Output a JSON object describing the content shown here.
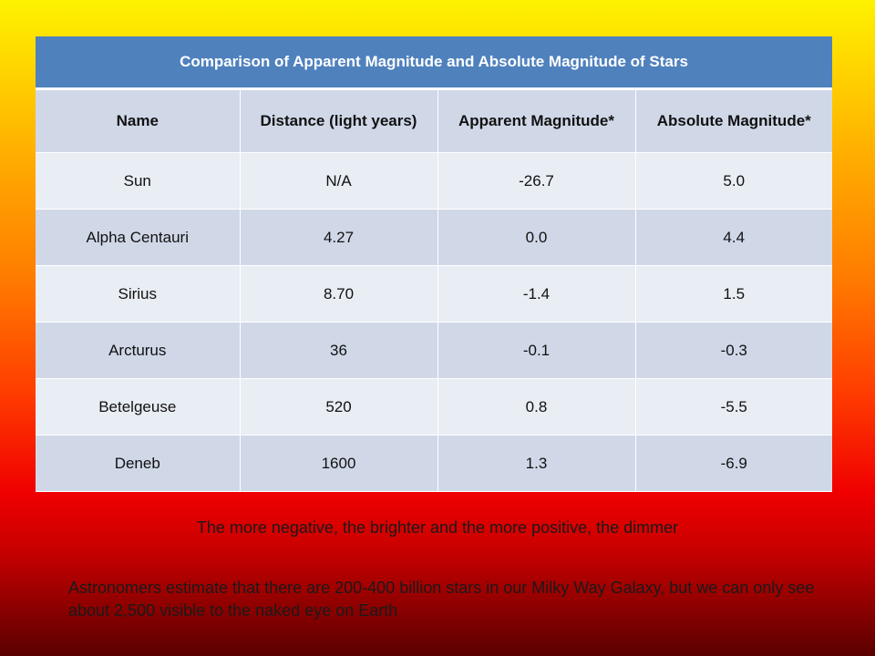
{
  "table": {
    "title": "Comparison of Apparent Magnitude and Absolute Magnitude of Stars",
    "headers": [
      "Name",
      "Distance (light years)",
      "Apparent Magnitude*",
      "Absolute Magnitude*"
    ],
    "rows": [
      [
        "Sun",
        "N/A",
        "-26.7",
        "5.0"
      ],
      [
        "Alpha Centauri",
        "4.27",
        "0.0",
        "4.4"
      ],
      [
        "Sirius",
        "8.70",
        "-1.4",
        "1.5"
      ],
      [
        "Arcturus",
        "36",
        "-0.1",
        "-0.3"
      ],
      [
        "Betelgeuse",
        "520",
        "0.8",
        "-5.5"
      ],
      [
        "Deneb",
        "1600",
        "1.3",
        "-6.9"
      ]
    ]
  },
  "note": "The more negative, the brighter and the more positive, the dimmer",
  "fact": "Astronomers estimate that there are 200-400 billion stars in our Milky Way Galaxy, but we can only see about 2,500 visible to the naked eye on Earth",
  "colors": {
    "title_bg": "#4f81bd",
    "row_dark": "#d0d8e8",
    "row_light": "#e9edf4"
  }
}
